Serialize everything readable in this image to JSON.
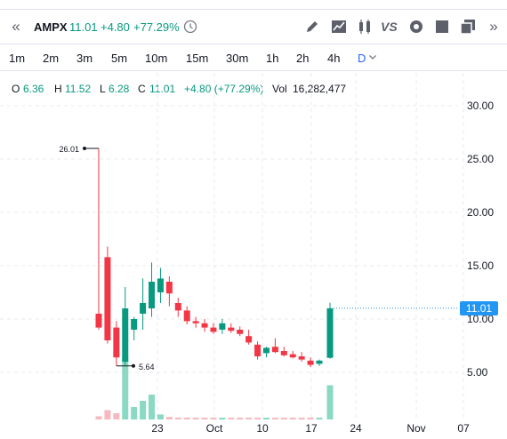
{
  "header": {
    "collapse_icon": "double-chevron-left-icon",
    "symbol": "AMPX",
    "last": "11.01",
    "change": "+4.80",
    "change_pct": "+77.29%",
    "tools": [
      "clock-icon",
      "pencil-icon",
      "line-chart-icon",
      "candles-icon",
      "vs-icon",
      "gear-icon",
      "square-icon",
      "copy-icon",
      "double-chevron-right-icon"
    ],
    "vs_label": "VS"
  },
  "intervals": {
    "items": [
      "1m",
      "2m",
      "3m",
      "5m",
      "10m",
      "15m",
      "30m",
      "1h",
      "2h",
      "4h",
      "D"
    ],
    "active": "D"
  },
  "legend": {
    "o_label": "O",
    "o_value": "6.36",
    "h_label": "H",
    "h_value": "11.52",
    "l_label": "L",
    "l_value": "6.28",
    "c_label": "C",
    "c_value": "11.01",
    "change": "+4.80 (+77.29%)",
    "vol_label": "Vol",
    "vol_value": "16,282,477"
  },
  "colors": {
    "up": "#089981",
    "down": "#f23645",
    "accent": "#2962ff",
    "price_tag": "#2196f3"
  },
  "chart_data": {
    "type": "candlestick",
    "x_tick_labels": [
      "23",
      "Oct",
      "10",
      "17",
      "24",
      "Nov",
      "07"
    ],
    "y_tick_labels": [
      "5.00",
      "10.00",
      "15.00",
      "20.00",
      "25.00",
      "30.00"
    ],
    "ylim": [
      0,
      32
    ],
    "grid": true,
    "last_price_label": "11.01",
    "high_annotation": "26.01",
    "low_annotation": "5.64",
    "candles": [
      {
        "o": 10.5,
        "h": 26.0,
        "l": 9.0,
        "c": 9.2
      },
      {
        "o": 15.8,
        "h": 16.8,
        "l": 7.7,
        "c": 8.0
      },
      {
        "o": 9.2,
        "h": 9.8,
        "l": 5.6,
        "c": 6.4
      },
      {
        "o": 6.0,
        "h": 13.0,
        "l": 5.7,
        "c": 11.0
      },
      {
        "o": 9.0,
        "h": 10.2,
        "l": 8.0,
        "c": 10.0
      },
      {
        "o": 10.5,
        "h": 13.8,
        "l": 9.0,
        "c": 11.5
      },
      {
        "o": 11.0,
        "h": 15.3,
        "l": 10.2,
        "c": 13.5
      },
      {
        "o": 12.5,
        "h": 14.8,
        "l": 11.5,
        "c": 13.8
      },
      {
        "o": 13.5,
        "h": 14.0,
        "l": 11.2,
        "c": 12.4
      },
      {
        "o": 11.5,
        "h": 12.0,
        "l": 10.2,
        "c": 10.8
      },
      {
        "o": 10.8,
        "h": 11.2,
        "l": 9.5,
        "c": 9.8
      },
      {
        "o": 9.8,
        "h": 10.2,
        "l": 9.2,
        "c": 9.6
      },
      {
        "o": 9.6,
        "h": 10.0,
        "l": 8.8,
        "c": 9.2
      },
      {
        "o": 9.2,
        "h": 9.6,
        "l": 8.6,
        "c": 8.8
      },
      {
        "o": 9.0,
        "h": 10.0,
        "l": 8.6,
        "c": 9.6
      },
      {
        "o": 9.2,
        "h": 9.6,
        "l": 8.7,
        "c": 8.9
      },
      {
        "o": 9.0,
        "h": 9.3,
        "l": 8.4,
        "c": 8.6
      },
      {
        "o": 8.4,
        "h": 9.0,
        "l": 7.6,
        "c": 7.8
      },
      {
        "o": 7.6,
        "h": 7.9,
        "l": 6.2,
        "c": 6.5
      },
      {
        "o": 6.8,
        "h": 7.4,
        "l": 6.4,
        "c": 7.3
      },
      {
        "o": 7.4,
        "h": 8.2,
        "l": 6.8,
        "c": 6.9
      },
      {
        "o": 7.0,
        "h": 7.4,
        "l": 6.5,
        "c": 6.6
      },
      {
        "o": 6.7,
        "h": 7.0,
        "l": 6.3,
        "c": 6.4
      },
      {
        "o": 6.5,
        "h": 6.9,
        "l": 6.0,
        "c": 6.2
      },
      {
        "o": 6.1,
        "h": 6.4,
        "l": 5.5,
        "c": 5.7
      },
      {
        "o": 5.8,
        "h": 6.2,
        "l": 5.6,
        "c": 6.1
      },
      {
        "o": 6.36,
        "h": 11.52,
        "l": 6.28,
        "c": 11.01
      }
    ],
    "volume_relative": [
      0.05,
      0.15,
      0.1,
      1.0,
      0.2,
      0.3,
      0.4,
      0.08,
      0.04,
      0.03,
      0.03,
      0.02,
      0.02,
      0.02,
      0.02,
      0.02,
      0.02,
      0.03,
      0.02,
      0.02,
      0.02,
      0.02,
      0.02,
      0.02,
      0.03,
      0.02,
      0.55
    ]
  }
}
